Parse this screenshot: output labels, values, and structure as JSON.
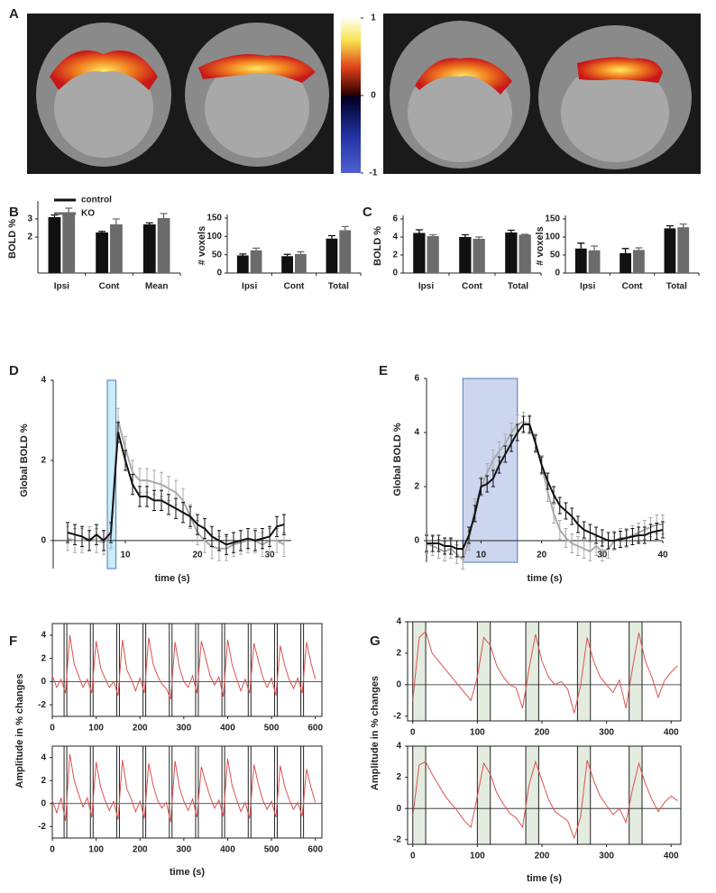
{
  "chart_data": [
    {
      "type": "colorbar",
      "panel": "A",
      "ylim": [
        -1,
        1
      ],
      "yticks": [
        -1,
        0,
        1
      ]
    },
    {
      "type": "bar",
      "panel": "B",
      "ylabel": "BOLD %",
      "categories": [
        "Ipsi",
        "Cont",
        "Mean"
      ],
      "series": [
        {
          "name": "control",
          "color": "#111111",
          "values": [
            3.1,
            2.25,
            2.7
          ],
          "errors": [
            0.12,
            0.06,
            0.08
          ]
        },
        {
          "name": "KO",
          "color": "#6b6b6b",
          "values": [
            3.35,
            2.7,
            3.05
          ],
          "errors": [
            0.25,
            0.3,
            0.25
          ]
        }
      ],
      "ylim": [
        0,
        3.8
      ],
      "yticks": [
        2,
        3
      ]
    },
    {
      "type": "bar",
      "ylabel": "# voxels",
      "categories": [
        "Ipsi",
        "Cont",
        "Total"
      ],
      "series": [
        {
          "color": "#111111",
          "values": [
            48,
            46,
            94
          ],
          "errors": [
            4,
            5,
            8
          ]
        },
        {
          "color": "#6b6b6b",
          "values": [
            62,
            52,
            117
          ],
          "errors": [
            6,
            6,
            10
          ]
        }
      ],
      "ylim": [
        0,
        150
      ],
      "yticks": [
        0,
        50,
        100,
        150
      ]
    },
    {
      "type": "bar",
      "panel": "C",
      "ylabel": "BOLD %",
      "categories": [
        "Ipsi",
        "Cont",
        "Total"
      ],
      "series": [
        {
          "color": "#111111",
          "values": [
            4.45,
            4.0,
            4.5
          ],
          "errors": [
            0.35,
            0.25,
            0.25
          ]
        },
        {
          "color": "#6b6b6b",
          "values": [
            4.1,
            3.8,
            4.25
          ],
          "errors": [
            0.15,
            0.2,
            0.05
          ]
        }
      ],
      "ylim": [
        0,
        6
      ],
      "yticks": [
        0,
        2,
        4,
        6
      ]
    },
    {
      "type": "bar",
      "ylabel": "# voxels",
      "categories": [
        "Ipsi",
        "Cont",
        "Total"
      ],
      "series": [
        {
          "color": "#111111",
          "values": [
            68,
            55,
            124
          ],
          "errors": [
            15,
            13,
            7
          ]
        },
        {
          "color": "#6b6b6b",
          "values": [
            63,
            64,
            127
          ],
          "errors": [
            12,
            6,
            9
          ]
        }
      ],
      "ylim": [
        0,
        150
      ],
      "yticks": [
        0,
        50,
        100,
        150
      ]
    },
    {
      "type": "line",
      "panel": "D",
      "ylabel": "Global BOLD %",
      "xlabel": "time (s)",
      "stim": [
        7.5,
        8.7
      ],
      "x": [
        2,
        3,
        4,
        5,
        6,
        7,
        8,
        9,
        10,
        11,
        12,
        13,
        14,
        15,
        16,
        17,
        18,
        19,
        20,
        21,
        22,
        23,
        24,
        25,
        26,
        27,
        28,
        29,
        30,
        31,
        32
      ],
      "series": [
        {
          "color": "#aaaaaa",
          "error": 0.3,
          "values": [
            0.05,
            0,
            0,
            0.05,
            0,
            -0.05,
            0.1,
            3.0,
            2.3,
            1.7,
            1.5,
            1.5,
            1.45,
            1.4,
            1.3,
            1.2,
            1.0,
            0.6,
            0.2,
            0,
            -0.15,
            -0.2,
            -0.2,
            -0.1,
            -0.05,
            0,
            0,
            -0.1,
            0,
            0,
            -0.1
          ]
        },
        {
          "color": "#111111",
          "error": 0.25,
          "values": [
            0.2,
            0.15,
            0.1,
            0,
            0.15,
            0,
            0.2,
            2.7,
            2.0,
            1.4,
            1.1,
            1.1,
            1.0,
            1.0,
            0.9,
            0.8,
            0.7,
            0.6,
            0.4,
            0.3,
            0.1,
            0,
            -0.1,
            -0.05,
            0,
            0.05,
            0,
            0.05,
            0.1,
            0.35,
            0.4
          ]
        }
      ],
      "xlim": [
        0,
        33
      ],
      "ylim": [
        -0.7,
        4
      ],
      "xticks": [
        10,
        20,
        30
      ],
      "yticks": [
        0,
        2,
        4
      ]
    },
    {
      "type": "line",
      "panel": "E",
      "ylabel": "Global BOLD %",
      "xlabel": "time (s)",
      "stim": [
        7,
        16
      ],
      "x": [
        1,
        2,
        3,
        4,
        5,
        6,
        7,
        8,
        9,
        10,
        11,
        12,
        13,
        14,
        15,
        16,
        17,
        18,
        19,
        20,
        21,
        22,
        23,
        24,
        25,
        26,
        27,
        28,
        29,
        30,
        31,
        32,
        33,
        34,
        35,
        36,
        37,
        38,
        39,
        40
      ],
      "series": [
        {
          "color": "#aaaaaa",
          "error": 0.35,
          "values": [
            -0.1,
            -0.2,
            -0.3,
            -0.4,
            -0.3,
            -0.5,
            -0.7,
            0,
            1.2,
            2.0,
            2.5,
            3.0,
            3.3,
            3.6,
            4.0,
            4.3,
            4.4,
            4.3,
            3.6,
            2.8,
            1.8,
            1.0,
            0.4,
            0.1,
            -0.1,
            -0.2,
            -0.3,
            -0.4,
            -0.2,
            -0.4,
            -0.3,
            0,
            0.1,
            0.1,
            0.2,
            0.3,
            0.4,
            0.5,
            0.6,
            0.6
          ]
        },
        {
          "color": "#111111",
          "error": 0.3,
          "values": [
            -0.1,
            -0.1,
            -0.1,
            -0.2,
            -0.2,
            -0.3,
            -0.3,
            0.2,
            1.0,
            2.0,
            2.1,
            2.3,
            2.8,
            3.2,
            3.6,
            4.0,
            4.3,
            4.3,
            3.6,
            2.8,
            2.2,
            1.7,
            1.3,
            1.1,
            0.9,
            0.6,
            0.4,
            0.3,
            0.2,
            0.1,
            0,
            0,
            0.05,
            0.1,
            0.15,
            0.2,
            0.2,
            0.3,
            0.35,
            0.4
          ]
        }
      ],
      "xlim": [
        1,
        40
      ],
      "ylim": [
        -0.8,
        6
      ],
      "xticks": [
        10,
        20,
        30,
        40
      ],
      "yticks": [
        0,
        2,
        4,
        6
      ]
    },
    {
      "type": "trace",
      "panel": "F",
      "ylabel": "Amplitude in % changes",
      "xlabel": "time (s)",
      "stim_lines": [
        30,
        90,
        150,
        210,
        270,
        330,
        390,
        450,
        510,
        570
      ],
      "x": [
        0,
        10,
        20,
        30,
        40,
        50,
        60,
        70,
        80,
        90,
        100,
        110,
        120,
        130,
        140,
        150,
        160,
        170,
        180,
        190,
        200,
        210,
        220,
        230,
        240,
        250,
        260,
        270,
        280,
        290,
        300,
        310,
        320,
        330,
        340,
        350,
        360,
        370,
        380,
        390,
        400,
        410,
        420,
        430,
        440,
        450,
        460,
        470,
        480,
        490,
        500,
        510,
        520,
        530,
        540,
        550,
        560,
        570,
        580,
        590,
        600
      ],
      "series": [
        {
          "color": "#d9534f",
          "values": [
            0.5,
            -0.5,
            0.2,
            -1,
            4,
            1.5,
            0.5,
            -0.5,
            0.2,
            -1,
            3.5,
            1.2,
            0.3,
            -0.5,
            0,
            -1.2,
            3.6,
            1,
            0.2,
            -0.8,
            0.3,
            -1,
            3.8,
            1.5,
            0.5,
            -0.2,
            -0.6,
            -1.5,
            3.4,
            1.2,
            0,
            -0.5,
            0.5,
            -1,
            3.5,
            2,
            0.5,
            -0.3,
            0.4,
            -1.3,
            3.6,
            1.5,
            0.3,
            -0.8,
            0.2,
            -1,
            3.3,
            1.8,
            0.4,
            -0.5,
            0.3,
            -1.2,
            3.1,
            1.4,
            0.2,
            -0.6,
            0.3,
            -1,
            3.4,
            1.6,
            0.2
          ]
        },
        {
          "color": "#d9534f",
          "values": [
            0.3,
            -0.8,
            0.5,
            -1.5,
            4.3,
            2,
            0.8,
            -0.3,
            0.5,
            -1.2,
            3.6,
            1.5,
            0.3,
            -0.6,
            0.2,
            -1.4,
            3.8,
            1.3,
            0.4,
            -0.7,
            0.2,
            -1.3,
            3.5,
            1.6,
            0.3,
            -0.4,
            0.1,
            -1.6,
            3.7,
            1.4,
            0.2,
            -0.6,
            0.4,
            -1.2,
            3.2,
            1.8,
            0.6,
            -0.4,
            0.3,
            -1.1,
            3.9,
            1.6,
            0.4,
            -0.7,
            0.1,
            -1.3,
            3.4,
            1.7,
            0.3,
            -0.5,
            0.2,
            -1.2,
            3.3,
            1.5,
            0.4,
            -0.5,
            0.1,
            -1.1,
            3.0,
            1.4,
            0.1
          ]
        }
      ],
      "xlim": [
        0,
        615
      ],
      "ylim": [
        -3,
        5
      ],
      "xticks": [
        0,
        100,
        200,
        300,
        400,
        500,
        600
      ],
      "yticks": [
        -2,
        0,
        2,
        4
      ]
    },
    {
      "type": "trace",
      "panel": "G",
      "ylabel": "Amplitude in % changes",
      "xlabel": "time (s)",
      "stim_blocks": [
        [
          0,
          20
        ],
        [
          100,
          120
        ],
        [
          175,
          195
        ],
        [
          255,
          275
        ],
        [
          335,
          355
        ]
      ],
      "x": [
        0,
        10,
        20,
        30,
        40,
        50,
        60,
        70,
        80,
        90,
        100,
        110,
        120,
        130,
        140,
        150,
        160,
        170,
        180,
        190,
        200,
        210,
        220,
        230,
        240,
        250,
        260,
        270,
        280,
        290,
        300,
        310,
        320,
        330,
        340,
        350,
        360,
        370,
        380,
        390,
        400,
        410
      ],
      "series": [
        {
          "color": "#d9534f",
          "values": [
            -1,
            3,
            3.4,
            2,
            1.5,
            1,
            0.5,
            0,
            -0.5,
            -1,
            0.5,
            3,
            2.5,
            1.2,
            0.5,
            0,
            -0.2,
            -1.5,
            1,
            3.2,
            1.5,
            0.5,
            0,
            0.2,
            -0.3,
            -1.8,
            0,
            3,
            1.5,
            0.5,
            0,
            -0.5,
            0.3,
            -1.5,
            1,
            3.3,
            1.5,
            0.5,
            -0.8,
            0.3,
            0.8,
            1.2
          ]
        },
        {
          "color": "#d9534f",
          "values": [
            -0.5,
            2.8,
            3,
            2.2,
            1.5,
            0.8,
            0.3,
            -0.2,
            -0.8,
            -1.2,
            0.8,
            2.9,
            2.2,
            1.0,
            0.3,
            -0.3,
            -0.6,
            -1.2,
            1.5,
            3.0,
            1.8,
            0.6,
            -0.2,
            -0.5,
            -0.8,
            -1.9,
            -0.5,
            3.1,
            1.8,
            0.8,
            0.2,
            -0.4,
            0,
            -0.9,
            1.2,
            2.9,
            1.6,
            0.6,
            -0.2,
            0.4,
            0.8,
            0.5
          ]
        }
      ],
      "xlim": [
        -8,
        415
      ],
      "ylim": [
        -2.3,
        4
      ],
      "xticks": [
        0,
        100,
        200,
        300,
        400
      ],
      "yticks": [
        -2,
        0,
        2,
        4
      ]
    }
  ]
}
